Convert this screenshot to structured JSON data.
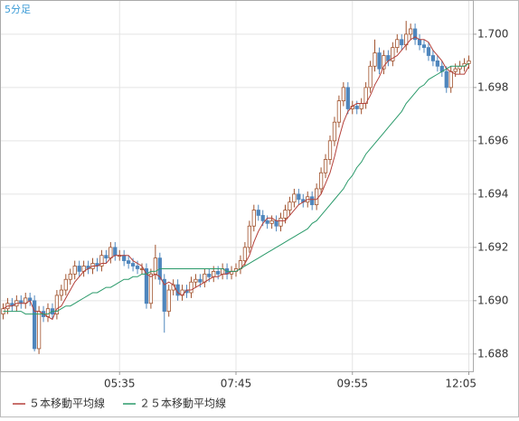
{
  "chart_data": {
    "type": "candlestick",
    "title": "5分足",
    "categories": [
      null,
      null,
      null,
      null,
      null,
      null,
      null,
      null,
      null,
      null,
      null,
      null,
      null,
      null,
      null,
      null,
      null,
      null,
      null,
      null,
      null,
      null,
      null,
      null,
      null,
      null,
      "05:35",
      null,
      null,
      null,
      null,
      null,
      null,
      null,
      null,
      null,
      null,
      null,
      null,
      null,
      null,
      null,
      null,
      null,
      null,
      null,
      null,
      null,
      null,
      null,
      null,
      null,
      "07:45",
      null,
      null,
      null,
      null,
      null,
      null,
      null,
      null,
      null,
      null,
      null,
      null,
      null,
      null,
      null,
      null,
      null,
      null,
      null,
      null,
      null,
      null,
      null,
      null,
      null,
      "09:55",
      null,
      null,
      null,
      null,
      null,
      null,
      null,
      null,
      null,
      null,
      null,
      null,
      null,
      null,
      null,
      null,
      null,
      null,
      null,
      null,
      null,
      null,
      null,
      null,
      null,
      "12:05"
    ],
    "open": [
      1.6895,
      1.6897,
      1.6899,
      1.6898,
      1.69,
      1.6899,
      1.6901,
      1.69,
      1.6882,
      1.6896,
      1.6894,
      1.6897,
      1.6895,
      1.6902,
      1.6904,
      1.6908,
      1.691,
      1.6913,
      1.6911,
      1.6913,
      1.6912,
      1.6914,
      1.6913,
      1.6917,
      1.6916,
      1.692,
      1.6917,
      1.6917,
      1.6915,
      1.6914,
      1.6913,
      1.6912,
      1.6912,
      1.6899,
      1.691,
      1.6916,
      1.6908,
      1.6896,
      1.6904,
      1.6906,
      1.6902,
      1.6904,
      1.6903,
      1.6907,
      1.6908,
      1.6907,
      1.691,
      1.6909,
      1.6911,
      1.691,
      1.6912,
      1.691,
      1.6911,
      1.6912,
      1.6915,
      1.692,
      1.6928,
      1.6934,
      1.6932,
      1.693,
      1.6929,
      1.693,
      1.6928,
      1.6931,
      1.6934,
      1.6937,
      1.694,
      1.6938,
      1.6937,
      1.6939,
      1.6936,
      1.6942,
      1.6948,
      1.6953,
      1.696,
      1.6967,
      1.6975,
      1.698,
      1.6972,
      1.6973,
      1.6972,
      1.6974,
      1.698,
      1.6988,
      1.6993,
      1.6987,
      1.6992,
      1.699,
      1.6995,
      1.6998,
      1.6996,
      1.7,
      1.7002,
      1.6998,
      1.6996,
      1.6995,
      1.6992,
      1.699,
      1.6988,
      1.6986,
      1.698,
      1.6986,
      1.6987,
      1.6988,
      1.6989
    ],
    "high": [
      1.6899,
      1.6901,
      1.6901,
      1.6902,
      1.6902,
      1.6903,
      1.6903,
      1.6902,
      1.6898,
      1.6898,
      1.6899,
      1.6899,
      1.6904,
      1.6906,
      1.691,
      1.6912,
      1.6915,
      1.6915,
      1.6915,
      1.6915,
      1.6916,
      1.6916,
      1.6919,
      1.6919,
      1.6922,
      1.6922,
      1.6919,
      1.6919,
      1.6917,
      1.6916,
      1.6915,
      1.6914,
      1.6914,
      1.6912,
      1.6921,
      1.6918,
      1.691,
      1.6906,
      1.6908,
      1.6908,
      1.6906,
      1.6906,
      1.6909,
      1.691,
      1.691,
      1.6912,
      1.6912,
      1.6913,
      1.6913,
      1.6914,
      1.6914,
      1.6913,
      1.6914,
      1.6917,
      1.6922,
      1.693,
      1.6936,
      1.6936,
      1.6934,
      1.6932,
      1.6932,
      1.6932,
      1.6933,
      1.6936,
      1.6939,
      1.6942,
      1.6942,
      1.694,
      1.6941,
      1.6941,
      1.6944,
      1.695,
      1.6955,
      1.6962,
      1.6969,
      1.6977,
      1.6982,
      1.6982,
      1.6975,
      1.6975,
      1.6976,
      1.6982,
      1.699,
      1.6998,
      1.6995,
      1.6994,
      1.6994,
      1.6997,
      1.7,
      1.7,
      1.7005,
      1.7004,
      1.7004,
      1.7,
      1.6998,
      1.6997,
      1.6994,
      1.6992,
      1.699,
      1.6988,
      1.6988,
      1.6989,
      1.699,
      1.6991,
      1.6992
    ],
    "low": [
      1.6893,
      1.6895,
      1.6896,
      1.6896,
      1.6897,
      1.6897,
      1.6898,
      1.6881,
      1.688,
      1.6892,
      1.6892,
      1.6893,
      1.6893,
      1.69,
      1.6902,
      1.6906,
      1.6908,
      1.6909,
      1.6909,
      1.691,
      1.691,
      1.6911,
      1.6911,
      1.6914,
      1.6914,
      1.6915,
      1.6915,
      1.6913,
      1.6912,
      1.6911,
      1.691,
      1.691,
      1.6897,
      1.6897,
      1.6908,
      1.6906,
      1.6888,
      1.6894,
      1.6902,
      1.69,
      1.69,
      1.6901,
      1.6901,
      1.6905,
      1.6905,
      1.6905,
      1.6907,
      1.6907,
      1.6908,
      1.6908,
      1.6908,
      1.6908,
      1.6909,
      1.691,
      1.6913,
      1.6918,
      1.6926,
      1.693,
      1.6928,
      1.6927,
      1.6927,
      1.6926,
      1.6926,
      1.6929,
      1.6932,
      1.6935,
      1.6936,
      1.6935,
      1.6935,
      1.6934,
      1.6934,
      1.694,
      1.6946,
      1.6951,
      1.6958,
      1.6965,
      1.6973,
      1.697,
      1.697,
      1.697,
      1.697,
      1.6972,
      1.6978,
      1.6986,
      1.6985,
      1.6985,
      1.6988,
      1.6988,
      1.6993,
      1.6994,
      1.6994,
      1.6998,
      1.6996,
      1.6994,
      1.6993,
      1.699,
      1.6988,
      1.6986,
      1.6984,
      1.6978,
      1.6978,
      1.6984,
      1.6985,
      1.6986,
      1.6987
    ],
    "close": [
      1.6897,
      1.6899,
      1.6898,
      1.69,
      1.6899,
      1.6901,
      1.69,
      1.6882,
      1.6896,
      1.6894,
      1.6897,
      1.6895,
      1.6902,
      1.6904,
      1.6908,
      1.691,
      1.6913,
      1.6911,
      1.6913,
      1.6912,
      1.6914,
      1.6913,
      1.6917,
      1.6916,
      1.692,
      1.6917,
      1.6917,
      1.6915,
      1.6914,
      1.6913,
      1.6912,
      1.6912,
      1.6899,
      1.691,
      1.6916,
      1.6908,
      1.6896,
      1.6904,
      1.6906,
      1.6902,
      1.6904,
      1.6903,
      1.6907,
      1.6908,
      1.6907,
      1.691,
      1.6909,
      1.6911,
      1.691,
      1.6912,
      1.691,
      1.6911,
      1.6912,
      1.6915,
      1.692,
      1.6928,
      1.6934,
      1.6932,
      1.693,
      1.6929,
      1.693,
      1.6928,
      1.6931,
      1.6934,
      1.6937,
      1.694,
      1.6938,
      1.6937,
      1.6939,
      1.6936,
      1.6942,
      1.6948,
      1.6953,
      1.696,
      1.6967,
      1.6975,
      1.698,
      1.6972,
      1.6973,
      1.6972,
      1.6974,
      1.698,
      1.6988,
      1.6993,
      1.6987,
      1.6992,
      1.699,
      1.6995,
      1.6998,
      1.6996,
      1.7,
      1.7002,
      1.6998,
      1.6996,
      1.6995,
      1.6992,
      1.699,
      1.6988,
      1.6986,
      1.698,
      1.6986,
      1.6987,
      1.6988,
      1.6989,
      1.699
    ],
    "up_color": "#ffffff",
    "up_edge": "#a0522d",
    "down_color": "#4f86bd",
    "series": [
      {
        "name": "５本移動平均線",
        "color": "#b5413b",
        "values": [
          1.6897,
          1.6898,
          1.6898,
          1.6899,
          1.6899,
          1.6899,
          1.69,
          1.6896,
          1.6896,
          1.6895,
          1.6894,
          1.6893,
          1.6897,
          1.6898,
          1.6901,
          1.6904,
          1.6907,
          1.6909,
          1.6911,
          1.6912,
          1.6913,
          1.6913,
          1.6914,
          1.6914,
          1.6916,
          1.6917,
          1.6917,
          1.6917,
          1.6917,
          1.6915,
          1.6914,
          1.6913,
          1.691,
          1.6909,
          1.691,
          1.6909,
          1.6906,
          1.6907,
          1.6906,
          1.6903,
          1.6902,
          1.6904,
          1.6904,
          1.6905,
          1.6906,
          1.6907,
          1.6908,
          1.6909,
          1.6909,
          1.691,
          1.691,
          1.6911,
          1.6911,
          1.6912,
          1.6914,
          1.6917,
          1.6922,
          1.6926,
          1.6929,
          1.6931,
          1.6931,
          1.693,
          1.693,
          1.693,
          1.6932,
          1.6934,
          1.6936,
          1.6937,
          1.6938,
          1.6938,
          1.6938,
          1.694,
          1.6944,
          1.6948,
          1.6954,
          1.6961,
          1.6967,
          1.6971,
          1.6973,
          1.6974,
          1.6974,
          1.6974,
          1.6977,
          1.6981,
          1.6984,
          1.6988,
          1.699,
          1.6991,
          1.6992,
          1.6994,
          1.6996,
          1.6998,
          1.6999,
          1.6998,
          1.6998,
          1.6997,
          1.6994,
          1.6992,
          1.699,
          1.6987,
          1.6986,
          1.6985,
          1.6985,
          1.6985,
          1.6988
        ]
      },
      {
        "name": "２５本移動平均線",
        "color": "#2a9a6a",
        "values": [
          1.6896,
          1.6896,
          1.6896,
          1.6896,
          1.6896,
          1.6895,
          1.6895,
          1.6895,
          1.6895,
          1.6895,
          1.6895,
          1.6896,
          1.6896,
          1.6897,
          1.6898,
          1.6898,
          1.6899,
          1.69,
          1.6901,
          1.6902,
          1.6903,
          1.6903,
          1.6904,
          1.6905,
          1.6905,
          1.6906,
          1.6907,
          1.6908,
          1.6908,
          1.6909,
          1.6909,
          1.691,
          1.691,
          1.6911,
          1.6911,
          1.6912,
          1.6912,
          1.6912,
          1.6912,
          1.6912,
          1.6912,
          1.6912,
          1.6912,
          1.6912,
          1.6912,
          1.6912,
          1.6912,
          1.6912,
          1.6912,
          1.6912,
          1.6911,
          1.6911,
          1.6911,
          1.6912,
          1.6913,
          1.6914,
          1.6915,
          1.6916,
          1.6917,
          1.6918,
          1.6919,
          1.692,
          1.6921,
          1.6922,
          1.6923,
          1.6924,
          1.6925,
          1.6926,
          1.6927,
          1.6929,
          1.693,
          1.6932,
          1.6934,
          1.6936,
          1.6938,
          1.694,
          1.6942,
          1.6945,
          1.6947,
          1.695,
          1.6952,
          1.6955,
          1.6957,
          1.6959,
          1.6961,
          1.6963,
          1.6965,
          1.6967,
          1.6969,
          1.6971,
          1.6974,
          1.6976,
          1.6978,
          1.698,
          1.6981,
          1.6983,
          1.6984,
          1.6985,
          1.6986,
          1.6987,
          1.6988,
          1.6988,
          1.6988,
          1.6988,
          1.6989
        ]
      }
    ],
    "ylim": [
      1.68735,
      1.70125
    ],
    "yticks": [
      {
        "value": 1.688,
        "label": "1.688"
      },
      {
        "value": 1.69,
        "label": "1.690"
      },
      1.692,
      1.694,
      1.696,
      1.698,
      {
        "value": 1.7,
        "label": "1.700"
      }
    ],
    "grid": true
  }
}
